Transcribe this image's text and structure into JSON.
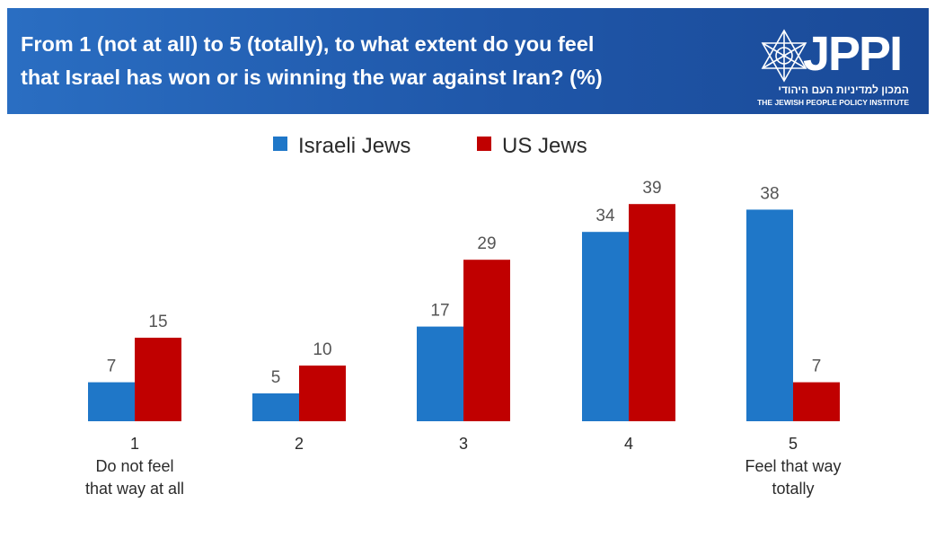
{
  "header": {
    "title_line1": "From 1 (not at all) to 5 (totally), to what extent do you feel",
    "title_line2": "that Israel has won or is winning the war against Iran? (%)",
    "logo_text": "JPPI",
    "logo_hebrew": "המכון למדיניות העם היהודי",
    "logo_english": "THE JEWISH PEOPLE POLICY INSTITUTE",
    "logo_icon": "star-of-david-icon"
  },
  "chart_data": {
    "type": "bar",
    "title": "From 1 (not at all) to 5 (totally), to what extent do you feel that Israel has won or is winning the war against Iran? (%)",
    "categories": [
      "1",
      "2",
      "3",
      "4",
      "5"
    ],
    "category_sublabels": [
      [
        "Do not feel",
        "that way at all"
      ],
      [],
      [],
      [],
      [
        "Feel that way",
        "totally"
      ]
    ],
    "series": [
      {
        "name": "Israeli Jews",
        "color": "#1f77c8",
        "values": [
          7,
          5,
          17,
          34,
          38
        ]
      },
      {
        "name": "US Jews",
        "color": "#c00000",
        "values": [
          15,
          10,
          29,
          39,
          7
        ]
      }
    ],
    "legend_position": "top-center",
    "grid": false,
    "ylim": [
      0,
      40
    ]
  }
}
